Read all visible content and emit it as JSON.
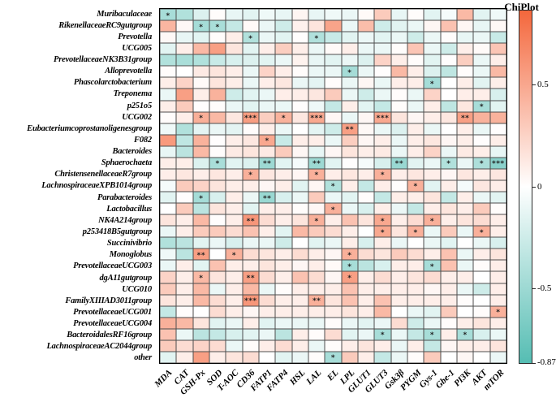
{
  "legend": {
    "title": "ChiPlot",
    "ticks": [
      "0.5",
      "0",
      "-0.5",
      "-0.87"
    ],
    "tick_values": [
      0.5,
      0,
      -0.5,
      -0.87
    ],
    "max": 0.87,
    "min": -0.87,
    "color_positive": "#f4673c",
    "color_zero": "#ffffff",
    "color_negative": "#55bdb3",
    "gridline_color": "#4d4d4d",
    "position": "right"
  },
  "chart_data": {
    "type": "heatmap",
    "title": "ChiPlot",
    "legend_position": "right",
    "value_range": [
      -0.87,
      0.87
    ],
    "grid": true,
    "columns": [
      "MDA",
      "CAT",
      "GSH-Px",
      "SOD",
      "T-AOC",
      "CD36",
      "FATP1",
      "FATP4",
      "HSL",
      "LAL",
      "EL",
      "LPL",
      "GLUT1",
      "GLUT3",
      "Gsk3β",
      "PYGM",
      "Gys-1",
      "Gbe-1",
      "PI3K",
      "AKT",
      "mTOR"
    ],
    "rows": [
      "Muribaculaceae",
      "RikenellaceaeRC9gutgroup",
      "Prevotella",
      "UCG005",
      "PrevotellaceaeNK3B31group",
      "Alloprevotella",
      "Phascolarctobacterium",
      "Treponema",
      "p251o5",
      "UCG002",
      "Eubacteriumcoprostanoligenesgroup",
      "F082",
      "Bacteroides",
      "Sphaerochaeta",
      "ChristensenellaceaeR7group",
      "LachnospiraceaeXPB1014group",
      "Parabacteroides",
      "Lactobacillus",
      "NK4A214group",
      "p253418B5gutgroup",
      "Succinivibrio",
      "Monoglobus",
      "PrevotellaceaeUCG003",
      "dgA11gutgroup",
      "UCG010",
      "FamilyXIIIAD3011group",
      "PrevotellaceaeUCG001",
      "PrevotellaceaeUCG004",
      "BacteroidalesRF16group",
      "LachnospiraceaeAC2044group",
      "other"
    ],
    "values": [
      [
        -0.45,
        -0.4,
        -0.18,
        0.02,
        -0.12,
        -0.15,
        -0.08,
        -0.12,
        0.06,
        -0.12,
        -0.08,
        -0.1,
        0.03,
        0.3,
        -0.12,
        0.02,
        -0.15,
        -0.05,
        0.4,
        -0.15,
        -0.08
      ],
      [
        0.42,
        0.04,
        -0.46,
        -0.44,
        -0.3,
        0.03,
        -0.1,
        -0.25,
        0.08,
        0.15,
        0.52,
        -0.1,
        0.38,
        -0.25,
        -0.15,
        -0.1,
        0.05,
        0.35,
        0.05,
        -0.12,
        0.04
      ],
      [
        0.04,
        -0.12,
        -0.15,
        0.02,
        0.1,
        -0.4,
        -0.1,
        -0.15,
        0.01,
        -0.4,
        -0.28,
        -0.15,
        -0.1,
        -0.15,
        -0.1,
        -0.25,
        -0.1,
        0.02,
        -0.12,
        -0.1,
        -0.28
      ],
      [
        -0.15,
        0.1,
        0.4,
        0.55,
        0.15,
        -0.15,
        0.1,
        0.28,
        0.1,
        -0.1,
        0.03,
        0.1,
        -0.1,
        -0.1,
        0.02,
        0.33,
        -0.1,
        -0.25,
        0.1,
        0.03,
        0.33
      ],
      [
        -0.4,
        -0.44,
        -0.4,
        -0.28,
        -0.2,
        -0.18,
        -0.15,
        -0.1,
        0.07,
        -0.12,
        -0.15,
        -0.1,
        -0.18,
        0.25,
        0.1,
        0.02,
        -0.15,
        0.01,
        0.28,
        -0.1,
        0.1
      ],
      [
        0.02,
        0.0,
        0.12,
        0.15,
        0.1,
        -0.1,
        0.25,
        0.1,
        0.02,
        -0.1,
        -0.1,
        -0.46,
        -0.1,
        0.01,
        0.4,
        0.1,
        -0.18,
        -0.33,
        0.02,
        -0.1,
        0.4
      ],
      [
        0.1,
        0.25,
        0.03,
        0.15,
        0.1,
        -0.1,
        0.1,
        0.14,
        -0.1,
        -0.14,
        0.02,
        -0.1,
        0.05,
        -0.1,
        0.1,
        0.1,
        -0.46,
        0.0,
        0.1,
        -0.15,
        0.1
      ],
      [
        -0.1,
        0.55,
        0.1,
        0.44,
        -0.25,
        -0.15,
        -0.1,
        0.1,
        0.1,
        0.14,
        0.3,
        -0.1,
        -0.25,
        -0.1,
        0.02,
        -0.1,
        0.25,
        0.0,
        0.1,
        0.1,
        -0.2
      ],
      [
        0.1,
        0.3,
        0.01,
        0.02,
        -0.1,
        -0.15,
        -0.1,
        -0.1,
        0.01,
        -0.08,
        -0.3,
        0.1,
        -0.15,
        -0.3,
        0.02,
        -0.1,
        0.1,
        -0.33,
        0.14,
        -0.45,
        -0.15
      ],
      [
        0.02,
        0.1,
        0.46,
        0.4,
        0.14,
        0.56,
        0.28,
        0.44,
        0.14,
        0.5,
        0.05,
        -0.1,
        0.05,
        0.5,
        0.15,
        0.05,
        0.1,
        0.14,
        0.55,
        0.44,
        0.44
      ],
      [
        -0.08,
        -0.4,
        -0.14,
        -0.1,
        -0.14,
        0.02,
        0.1,
        -0.1,
        0.0,
        -0.14,
        -0.25,
        0.55,
        0.04,
        -0.1,
        -0.18,
        0.1,
        -0.1,
        0.0,
        0.1,
        -0.1,
        0.01
      ],
      [
        0.58,
        -0.33,
        0.44,
        0.01,
        0.1,
        0.14,
        0.5,
        -0.28,
        0.1,
        0.1,
        -0.1,
        0.28,
        0.05,
        0.1,
        -0.1,
        0.1,
        0.14,
        0.05,
        0.1,
        0.01,
        0.1
      ],
      [
        -0.12,
        -0.35,
        0.4,
        0.02,
        0.12,
        0.15,
        0.12,
        0.3,
        0.05,
        -0.12,
        0.05,
        0.15,
        0.1,
        0.12,
        -0.1,
        0.1,
        0.25,
        -0.1,
        0.12,
        0.1,
        -0.12
      ],
      [
        0.1,
        0.1,
        -0.18,
        -0.44,
        -0.15,
        -0.18,
        -0.5,
        -0.15,
        -0.05,
        -0.5,
        -0.15,
        0.01,
        -0.05,
        -0.2,
        -0.52,
        -0.15,
        -0.1,
        -0.4,
        -0.1,
        -0.42,
        -0.6
      ],
      [
        0.1,
        0.14,
        0.1,
        0.14,
        0.1,
        0.45,
        0.14,
        0.1,
        0.05,
        0.45,
        0.1,
        0.14,
        0.1,
        0.45,
        0.1,
        0.14,
        0.1,
        0.05,
        0.14,
        0.1,
        0.14
      ],
      [
        -0.05,
        0.3,
        0.25,
        0.15,
        0.1,
        0.1,
        0.05,
        0.1,
        -0.15,
        0.05,
        -0.4,
        0.1,
        -0.3,
        0.1,
        0.01,
        0.45,
        -0.15,
        0.1,
        -0.05,
        0.14,
        0.1
      ],
      [
        -0.15,
        0.01,
        -0.46,
        -0.2,
        0.1,
        -0.1,
        -0.52,
        -0.2,
        -0.1,
        0.3,
        -0.1,
        -0.15,
        0.02,
        -0.3,
        0.1,
        0.1,
        0.15,
        -0.3,
        0.1,
        -0.1,
        -0.15
      ],
      [
        0.0,
        0.3,
        -0.35,
        0.15,
        0.1,
        -0.15,
        0.1,
        0.1,
        0.02,
        0.05,
        0.45,
        -0.1,
        -0.2,
        0.1,
        -0.1,
        -0.3,
        0.1,
        0.15,
        0.1,
        0.3,
        0.02
      ],
      [
        0.15,
        0.1,
        0.4,
        0.01,
        0.1,
        0.6,
        0.2,
        0.1,
        0.15,
        0.45,
        0.1,
        0.35,
        0.15,
        0.5,
        0.1,
        0.2,
        0.45,
        0.1,
        0.15,
        0.2,
        0.1
      ],
      [
        -0.1,
        0.1,
        0.3,
        0.3,
        0.2,
        0.35,
        0.1,
        -0.15,
        0.4,
        0.3,
        0.2,
        0.1,
        0.0,
        0.5,
        0.15,
        0.45,
        -0.1,
        0.3,
        -0.1,
        0.45,
        0.1
      ],
      [
        -0.4,
        -0.35,
        -0.15,
        -0.1,
        -0.2,
        -0.1,
        -0.1,
        -0.25,
        0.0,
        -0.15,
        -0.1,
        0.1,
        -0.2,
        0.1,
        -0.1,
        0.0,
        -0.1,
        -0.15,
        0.0,
        -0.1,
        -0.2
      ],
      [
        -0.08,
        -0.35,
        0.55,
        0.0,
        0.45,
        0.2,
        0.15,
        0.1,
        0.2,
        0.1,
        0.05,
        0.45,
        0.2,
        0.15,
        0.3,
        0.2,
        0.1,
        0.35,
        -0.1,
        0.1,
        0.15
      ],
      [
        -0.1,
        0.1,
        -0.15,
        0.35,
        0.1,
        0.1,
        0.15,
        0.1,
        0.05,
        0.1,
        0.03,
        -0.45,
        -0.35,
        -0.2,
        0.1,
        0.1,
        -0.45,
        0.35,
        -0.1,
        0.02,
        0.1
      ],
      [
        0.25,
        0.1,
        0.4,
        0.15,
        0.1,
        0.55,
        0.2,
        0.1,
        0.35,
        0.2,
        0.05,
        0.55,
        0.1,
        0.2,
        0.1,
        0.15,
        0.2,
        0.1,
        0.1,
        0.0,
        0.1
      ],
      [
        0.3,
        0.1,
        0.4,
        -0.1,
        0.1,
        0.4,
        -0.1,
        0.02,
        0.1,
        0.1,
        0.1,
        0.35,
        0.1,
        0.1,
        0.1,
        0.1,
        0.05,
        0.1,
        -0.1,
        -0.25,
        0.1
      ],
      [
        0.15,
        0.1,
        0.4,
        0.2,
        0.1,
        0.6,
        0.2,
        0.1,
        0.1,
        0.45,
        0.15,
        0.35,
        0.1,
        0.35,
        0.1,
        0.1,
        0.1,
        0.1,
        0.02,
        0.0,
        0.1
      ],
      [
        -0.3,
        0.02,
        0.0,
        0.2,
        0.1,
        0.05,
        0.1,
        0.1,
        0.1,
        0.1,
        0.1,
        0.15,
        0.1,
        0.4,
        0.0,
        -0.1,
        -0.15,
        0.3,
        0.0,
        0.02,
        0.45
      ],
      [
        0.45,
        0.4,
        0.15,
        -0.15,
        -0.1,
        0.1,
        -0.15,
        -0.1,
        -0.1,
        -0.1,
        0.02,
        -0.1,
        -0.15,
        -0.1,
        0.2,
        -0.25,
        -0.1,
        0.02,
        0.1,
        0.15,
        0.1
      ],
      [
        0.35,
        -0.1,
        -0.35,
        -0.3,
        -0.2,
        -0.15,
        -0.1,
        -0.35,
        0.1,
        0.02,
        0.2,
        -0.15,
        -0.1,
        -0.45,
        -0.1,
        -0.3,
        -0.45,
        0.1,
        -0.45,
        -0.2,
        -0.1
      ],
      [
        0.3,
        0.2,
        0.25,
        0.2,
        -0.1,
        0.02,
        0.1,
        0.2,
        0.1,
        -0.1,
        0.02,
        0.1,
        0.15,
        0.1,
        -0.1,
        0.1,
        -0.3,
        0.05,
        0.1,
        0.1,
        0.15
      ],
      [
        -0.15,
        0.1,
        0.55,
        0.1,
        0.15,
        0.2,
        0.0,
        -0.15,
        -0.1,
        0.02,
        -0.45,
        0.3,
        0.1,
        -0.3,
        -0.1,
        0.02,
        0.3,
        0.0,
        0.05,
        0.0,
        -0.1
      ]
    ],
    "significance": [
      [
        "*",
        "",
        "",
        "",
        "",
        "",
        "",
        "",
        "",
        "",
        "",
        "",
        "",
        "",
        "",
        "",
        "",
        "",
        "",
        "",
        ""
      ],
      [
        "",
        "",
        "*",
        "*",
        "",
        "",
        "",
        "",
        "",
        "",
        "",
        "",
        "",
        "",
        "",
        "",
        "",
        "",
        "",
        "",
        ""
      ],
      [
        "",
        "",
        "",
        "",
        "",
        "*",
        "",
        "",
        "",
        "*",
        "",
        "",
        "",
        "",
        "",
        "",
        "",
        "",
        "",
        "",
        ""
      ],
      [
        "",
        "",
        "",
        "",
        "",
        "",
        "",
        "",
        "",
        "",
        "",
        "",
        "",
        "",
        "",
        "",
        "",
        "",
        "",
        "",
        ""
      ],
      [
        "",
        "",
        "",
        "",
        "",
        "",
        "",
        "",
        "",
        "",
        "",
        "",
        "",
        "",
        "",
        "",
        "",
        "",
        "",
        "",
        ""
      ],
      [
        "",
        "",
        "",
        "",
        "",
        "",
        "",
        "",
        "",
        "",
        "",
        "*",
        "",
        "",
        "",
        "",
        "",
        "",
        "",
        "",
        ""
      ],
      [
        "",
        "",
        "",
        "",
        "",
        "",
        "",
        "",
        "",
        "",
        "",
        "",
        "",
        "",
        "",
        "",
        "*",
        "",
        "",
        "",
        ""
      ],
      [
        "",
        "",
        "",
        "",
        "",
        "",
        "",
        "",
        "",
        "",
        "",
        "",
        "",
        "",
        "",
        "",
        "",
        "",
        "",
        "",
        ""
      ],
      [
        "",
        "",
        "",
        "",
        "",
        "",
        "",
        "",
        "",
        "",
        "",
        "",
        "",
        "",
        "",
        "",
        "",
        "",
        "",
        "*",
        ""
      ],
      [
        "",
        "",
        "*",
        "",
        "",
        "***",
        "",
        "*",
        "",
        "***",
        "",
        "",
        "",
        "***",
        "",
        "",
        "",
        "",
        "**",
        "",
        ""
      ],
      [
        "",
        "",
        "",
        "",
        "",
        "",
        "",
        "",
        "",
        "",
        "",
        "**",
        "",
        "",
        "",
        "",
        "",
        "",
        "",
        "",
        ""
      ],
      [
        "",
        "",
        "",
        "",
        "",
        "",
        "*",
        "",
        "",
        "",
        "",
        "",
        "",
        "",
        "",
        "",
        "",
        "",
        "",
        "",
        ""
      ],
      [
        "",
        "",
        "",
        "",
        "",
        "",
        "",
        "",
        "",
        "",
        "",
        "",
        "",
        "",
        "",
        "",
        "",
        "",
        "",
        "",
        ""
      ],
      [
        "",
        "",
        "",
        "*",
        "",
        "",
        "**",
        "",
        "",
        "**",
        "",
        "",
        "",
        "",
        "**",
        "",
        "",
        "*",
        "",
        "*",
        "***"
      ],
      [
        "",
        "",
        "",
        "",
        "",
        "*",
        "",
        "",
        "",
        "*",
        "",
        "",
        "",
        "*",
        "",
        "",
        "",
        "",
        "",
        "",
        ""
      ],
      [
        "",
        "",
        "",
        "",
        "",
        "",
        "",
        "",
        "",
        "",
        "*",
        "",
        "",
        "",
        "",
        "*",
        "",
        "",
        "",
        "",
        ""
      ],
      [
        "",
        "",
        "*",
        "",
        "",
        "",
        "**",
        "",
        "",
        "",
        "",
        "",
        "",
        "",
        "",
        "",
        "",
        "",
        "",
        "",
        ""
      ],
      [
        "",
        "",
        "",
        "",
        "",
        "",
        "",
        "",
        "",
        "",
        "*",
        "",
        "",
        "",
        "",
        "",
        "",
        "",
        "",
        "",
        ""
      ],
      [
        "",
        "",
        "",
        "",
        "",
        "**",
        "",
        "",
        "",
        "*",
        "",
        "",
        "",
        "*",
        "",
        "",
        "*",
        "",
        "",
        "",
        ""
      ],
      [
        "",
        "",
        "",
        "",
        "",
        "",
        "",
        "",
        "",
        "",
        "",
        "",
        "",
        "*",
        "",
        "*",
        "",
        "",
        "",
        "*",
        ""
      ],
      [
        "",
        "",
        "",
        "",
        "",
        "",
        "",
        "",
        "",
        "",
        "",
        "",
        "",
        "",
        "",
        "",
        "",
        "",
        "",
        "",
        ""
      ],
      [
        "",
        "",
        "**",
        "",
        "*",
        "",
        "",
        "",
        "",
        "",
        "",
        "*",
        "",
        "",
        "",
        "",
        "",
        "",
        "",
        "",
        ""
      ],
      [
        "",
        "",
        "",
        "",
        "",
        "",
        "",
        "",
        "",
        "",
        "",
        "*",
        "",
        "",
        "",
        "",
        "*",
        "",
        "",
        "",
        ""
      ],
      [
        "",
        "",
        "*",
        "",
        "",
        "**",
        "",
        "",
        "",
        "",
        "",
        "*",
        "",
        "",
        "",
        "",
        "",
        "",
        "",
        "",
        ""
      ],
      [
        "",
        "",
        "",
        "",
        "",
        "",
        "",
        "",
        "",
        "",
        "",
        "",
        "",
        "",
        "",
        "",
        "",
        "",
        "",
        "",
        ""
      ],
      [
        "",
        "",
        "",
        "",
        "",
        "***",
        "",
        "",
        "",
        "**",
        "",
        "",
        "",
        "",
        "",
        "",
        "",
        "",
        "",
        "",
        ""
      ],
      [
        "",
        "",
        "",
        "",
        "",
        "",
        "",
        "",
        "",
        "",
        "",
        "",
        "",
        "",
        "",
        "",
        "",
        "",
        "",
        "",
        "*"
      ],
      [
        "",
        "",
        "",
        "",
        "",
        "",
        "",
        "",
        "",
        "",
        "",
        "",
        "",
        "",
        "",
        "",
        "",
        "",
        "",
        "",
        ""
      ],
      [
        "",
        "",
        "",
        "",
        "",
        "",
        "",
        "",
        "",
        "",
        "",
        "",
        "",
        "*",
        "",
        "",
        "*",
        "",
        "*",
        "",
        ""
      ],
      [
        "",
        "",
        "",
        "",
        "",
        "",
        "",
        "",
        "",
        "",
        "",
        "",
        "",
        "",
        "",
        "",
        "",
        "",
        "",
        "",
        ""
      ],
      [
        "",
        "",
        "",
        "",
        "",
        "",
        "",
        "",
        "",
        "",
        "*",
        "",
        "",
        "",
        "",
        "",
        "",
        "",
        "",
        "",
        ""
      ]
    ]
  }
}
